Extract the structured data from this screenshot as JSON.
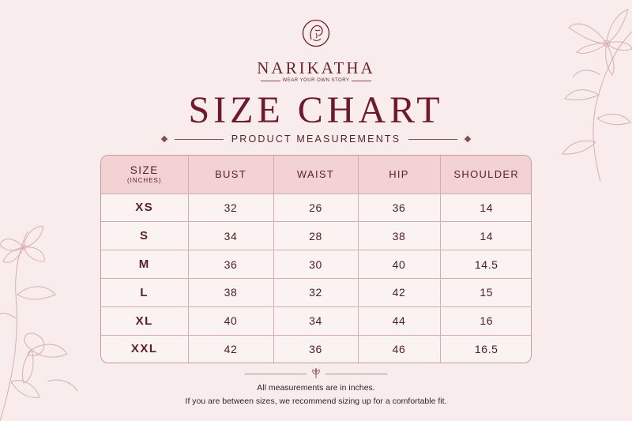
{
  "brand": {
    "name": "NARIKATHA",
    "tagline": "WEAR YOUR OWN STORY"
  },
  "title": "SIZE CHART",
  "subtitle": "PRODUCT MEASUREMENTS",
  "table": {
    "headers": {
      "size": "SIZE",
      "size_unit": "(INCHES)",
      "bust": "BUST",
      "waist": "WAIST",
      "hip": "HIP",
      "shoulder": "SHOULDER"
    },
    "rows": [
      {
        "size": "XS",
        "bust": "32",
        "waist": "26",
        "hip": "36",
        "shoulder": "14"
      },
      {
        "size": "S",
        "bust": "34",
        "waist": "28",
        "hip": "38",
        "shoulder": "14"
      },
      {
        "size": "M",
        "bust": "36",
        "waist": "30",
        "hip": "40",
        "shoulder": "14.5"
      },
      {
        "size": "L",
        "bust": "38",
        "waist": "32",
        "hip": "42",
        "shoulder": "15"
      },
      {
        "size": "XL",
        "bust": "40",
        "waist": "34",
        "hip": "44",
        "shoulder": "16"
      },
      {
        "size": "XXL",
        "bust": "42",
        "waist": "36",
        "hip": "46",
        "shoulder": "16.5"
      }
    ]
  },
  "notes": {
    "line1": "All measurements are in inches.",
    "line2": "If you are between sizes, we recommend sizing up for a comfortable fit."
  },
  "colors": {
    "background": "#f9ecec",
    "accent": "#6e1a2c",
    "header_row": "#f3d2d3"
  },
  "icons": {
    "logo": "face-logo-icon",
    "footer": "leaf-icon"
  }
}
